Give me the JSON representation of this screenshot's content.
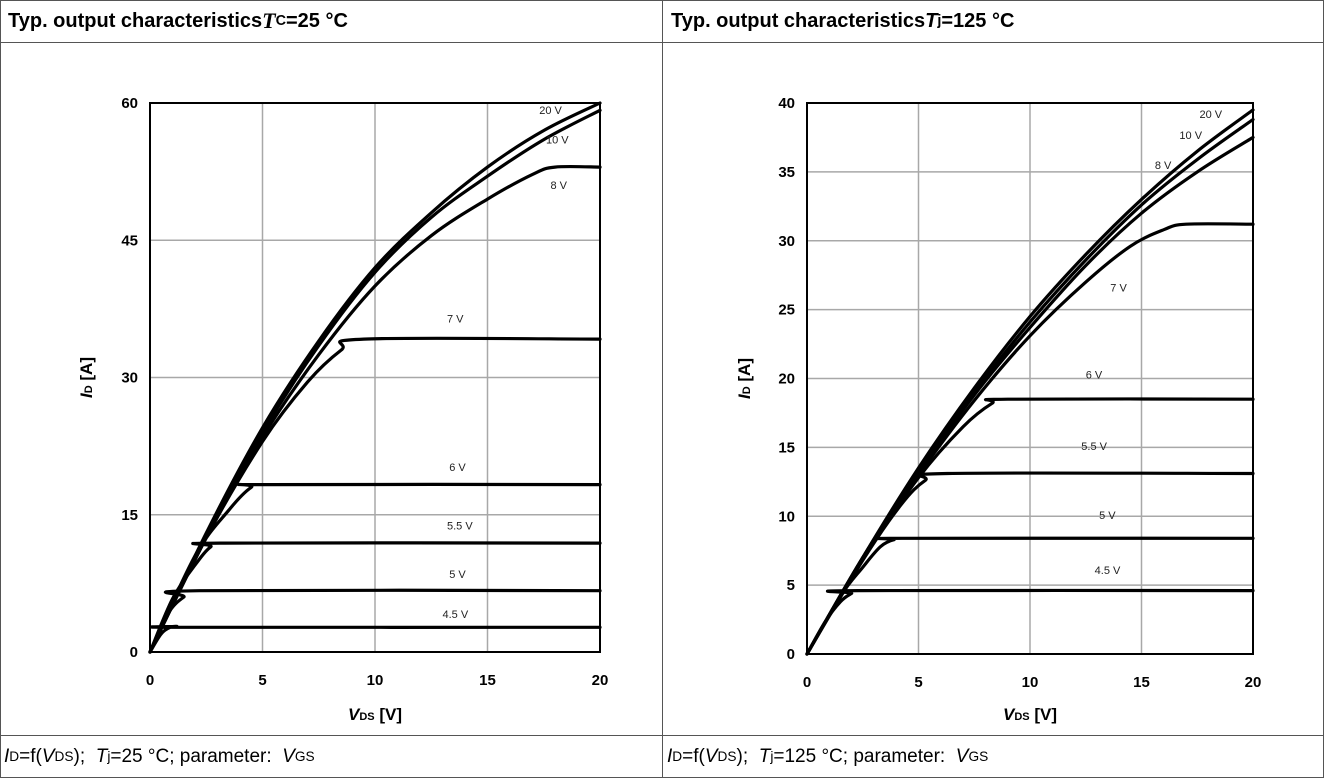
{
  "panels": [
    {
      "title": {
        "text": "Typ. output characteristics ",
        "sym": "T",
        "sub": "C",
        "tail": "=25 °C"
      },
      "footer": {
        "a": "I",
        "a_sub": "D",
        "b": "=f(",
        "c": "V",
        "c_sub": "DS",
        "d": ");  ",
        "e": "T",
        "e_sub": "j",
        "f": "=25 °C; parameter:  ",
        "g": "V",
        "g_sub": "GS"
      }
    },
    {
      "title": {
        "text": "Typ. output characteristics ",
        "sym": "T",
        "sub": "j",
        "tail": "=125 °C"
      },
      "footer": {
        "a": "I",
        "a_sub": "D",
        "b": "=f(",
        "c": "V",
        "c_sub": "DS",
        "d": ");  ",
        "e": "T",
        "e_sub": "j",
        "f": "=125 °C; parameter:  ",
        "g": "V",
        "g_sub": "GS"
      }
    }
  ],
  "chart_data": [
    {
      "type": "line",
      "title": "Typ. output characteristics TC=25 °C",
      "xlabel": {
        "main": "V",
        "sub": "DS",
        "unit": " [V]"
      },
      "ylabel": {
        "main": "I",
        "sub": "D",
        "unit": " [A]"
      },
      "xlim": [
        0,
        20
      ],
      "ylim": [
        0,
        60
      ],
      "xticks": [
        0,
        5,
        10,
        15,
        20
      ],
      "yticks": [
        0,
        15,
        30,
        45,
        60
      ],
      "grid": true,
      "series": [
        {
          "name": "20 V",
          "points": [
            [
              0,
              0
            ],
            [
              2.5,
              13
            ],
            [
              5,
              24.5
            ],
            [
              7.5,
              34
            ],
            [
              10,
              42
            ],
            [
              12.5,
              48
            ],
            [
              15,
              53
            ],
            [
              17.5,
              57
            ],
            [
              20,
              60
            ]
          ]
        },
        {
          "name": "10 V",
          "points": [
            [
              0,
              0
            ],
            [
              2.5,
              12.8
            ],
            [
              5,
              24
            ],
            [
              7.5,
              33.5
            ],
            [
              10,
              41.5
            ],
            [
              12.5,
              47.5
            ],
            [
              15,
              52
            ],
            [
              17.5,
              56
            ],
            [
              20,
              59.2
            ]
          ]
        },
        {
          "name": "8 V",
          "points": [
            [
              0,
              0
            ],
            [
              2.5,
              12.5
            ],
            [
              5,
              23.5
            ],
            [
              7.5,
              32.5
            ],
            [
              10,
              40
            ],
            [
              12.5,
              45.5
            ],
            [
              15,
              49.5
            ],
            [
              17,
              52.2
            ],
            [
              18,
              53
            ],
            [
              20,
              53
            ]
          ]
        },
        {
          "name": "7 V",
          "points": [
            [
              0,
              0
            ],
            [
              2.5,
              12.5
            ],
            [
              5,
              23
            ],
            [
              7,
              29.5
            ],
            [
              8.5,
              33
            ],
            [
              9.5,
              34.2
            ],
            [
              20,
              34.2
            ]
          ]
        },
        {
          "name": "6 V",
          "points": [
            [
              0,
              0
            ],
            [
              2,
              10.5
            ],
            [
              3.5,
              15.5
            ],
            [
              4.5,
              18
            ],
            [
              5.2,
              18.3
            ],
            [
              20,
              18.3
            ]
          ]
        },
        {
          "name": "5.5 V",
          "points": [
            [
              0,
              0
            ],
            [
              1,
              5.8
            ],
            [
              2,
              9.5
            ],
            [
              2.7,
              11.5
            ],
            [
              3.3,
              11.9
            ],
            [
              20,
              11.9
            ]
          ]
        },
        {
          "name": "5 V",
          "points": [
            [
              0,
              0
            ],
            [
              0.8,
              4.2
            ],
            [
              1.5,
              6
            ],
            [
              2.2,
              6.7
            ],
            [
              20,
              6.7
            ]
          ]
        },
        {
          "name": "4.5 V",
          "points": [
            [
              0,
              0
            ],
            [
              0.5,
              2
            ],
            [
              0.9,
              2.7
            ],
            [
              1.2,
              2.8
            ],
            [
              1.5,
              2.7
            ],
            [
              20,
              2.7
            ]
          ]
        }
      ],
      "annotations": [
        {
          "text": "20 V",
          "x": 17.3,
          "y": 58.8
        },
        {
          "text": "10 V",
          "x": 17.6,
          "y": 55.6
        },
        {
          "text": "8 V",
          "x": 17.8,
          "y": 50.6
        },
        {
          "text": "7 V",
          "x": 13.2,
          "y": 36.0
        },
        {
          "text": "6 V",
          "x": 13.3,
          "y": 19.8
        },
        {
          "text": "5.5 V",
          "x": 13.2,
          "y": 13.4
        },
        {
          "text": "5 V",
          "x": 13.3,
          "y": 8.1
        },
        {
          "text": "4.5 V",
          "x": 13.0,
          "y": 3.7
        }
      ]
    },
    {
      "type": "line",
      "title": "Typ. output characteristics Tj=125 °C",
      "xlabel": {
        "main": "V",
        "sub": "DS",
        "unit": " [V]"
      },
      "ylabel": {
        "main": "I",
        "sub": "D",
        "unit": " [A]"
      },
      "xlim": [
        0,
        20
      ],
      "ylim": [
        0,
        40
      ],
      "xticks": [
        0,
        5,
        10,
        15,
        20
      ],
      "yticks": [
        0,
        5,
        10,
        15,
        20,
        25,
        30,
        35,
        40
      ],
      "grid": true,
      "series": [
        {
          "name": "20 V",
          "points": [
            [
              0,
              0
            ],
            [
              2.5,
              7
            ],
            [
              5,
              13.5
            ],
            [
              7.5,
              19.3
            ],
            [
              10,
              24.5
            ],
            [
              12.5,
              29
            ],
            [
              15,
              33
            ],
            [
              17.5,
              36.5
            ],
            [
              20,
              39.5
            ]
          ]
        },
        {
          "name": "10 V",
          "points": [
            [
              0,
              0
            ],
            [
              2.5,
              7
            ],
            [
              5,
              13.3
            ],
            [
              7.5,
              19
            ],
            [
              10,
              24.1
            ],
            [
              12.5,
              28.6
            ],
            [
              15,
              32.6
            ],
            [
              17.5,
              35.9
            ],
            [
              20,
              38.8
            ]
          ]
        },
        {
          "name": "8 V",
          "points": [
            [
              0,
              0
            ],
            [
              2.5,
              7
            ],
            [
              5,
              13.2
            ],
            [
              7.5,
              18.8
            ],
            [
              10,
              23.7
            ],
            [
              12.5,
              28.2
            ],
            [
              15,
              32
            ],
            [
              17.5,
              35
            ],
            [
              20,
              37.5
            ]
          ]
        },
        {
          "name": "7 V",
          "points": [
            [
              0,
              0
            ],
            [
              2.5,
              7
            ],
            [
              5,
              13
            ],
            [
              7.5,
              18.4
            ],
            [
              10,
              23.1
            ],
            [
              12.5,
              27
            ],
            [
              14.5,
              29.6
            ],
            [
              16,
              30.8
            ],
            [
              17,
              31.2
            ],
            [
              20,
              31.2
            ]
          ]
        },
        {
          "name": "6 V",
          "points": [
            [
              0,
              0
            ],
            [
              2.5,
              6.9
            ],
            [
              5,
              12.8
            ],
            [
              7,
              16.5
            ],
            [
              8.3,
              18.2
            ],
            [
              9,
              18.5
            ],
            [
              20,
              18.5
            ]
          ]
        },
        {
          "name": "5.5 V",
          "points": [
            [
              0,
              0
            ],
            [
              2.5,
              6.8
            ],
            [
              4.2,
              10.8
            ],
            [
              5.3,
              12.6
            ],
            [
              6.3,
              13.1
            ],
            [
              20,
              13.1
            ]
          ]
        },
        {
          "name": "5 V",
          "points": [
            [
              0,
              0
            ],
            [
              1.5,
              4.2
            ],
            [
              2.5,
              6.3
            ],
            [
              3.3,
              7.8
            ],
            [
              3.9,
              8.3
            ],
            [
              4.4,
              8.4
            ],
            [
              20,
              8.4
            ]
          ]
        },
        {
          "name": "4.5 V",
          "points": [
            [
              0,
              0
            ],
            [
              0.8,
              2.3
            ],
            [
              1.5,
              3.8
            ],
            [
              2,
              4.4
            ],
            [
              2.3,
              4.6
            ],
            [
              20,
              4.6
            ]
          ]
        }
      ],
      "annotations": [
        {
          "text": "20 V",
          "x": 17.6,
          "y": 38.9
        },
        {
          "text": "10 V",
          "x": 16.7,
          "y": 37.4
        },
        {
          "text": "8 V",
          "x": 15.6,
          "y": 35.2
        },
        {
          "text": "7 V",
          "x": 13.6,
          "y": 26.3
        },
        {
          "text": "6 V",
          "x": 12.5,
          "y": 20.0
        },
        {
          "text": "5.5 V",
          "x": 12.3,
          "y": 14.8
        },
        {
          "text": "5 V",
          "x": 13.1,
          "y": 9.8
        },
        {
          "text": "4.5 V",
          "x": 12.9,
          "y": 5.8
        }
      ]
    }
  ]
}
